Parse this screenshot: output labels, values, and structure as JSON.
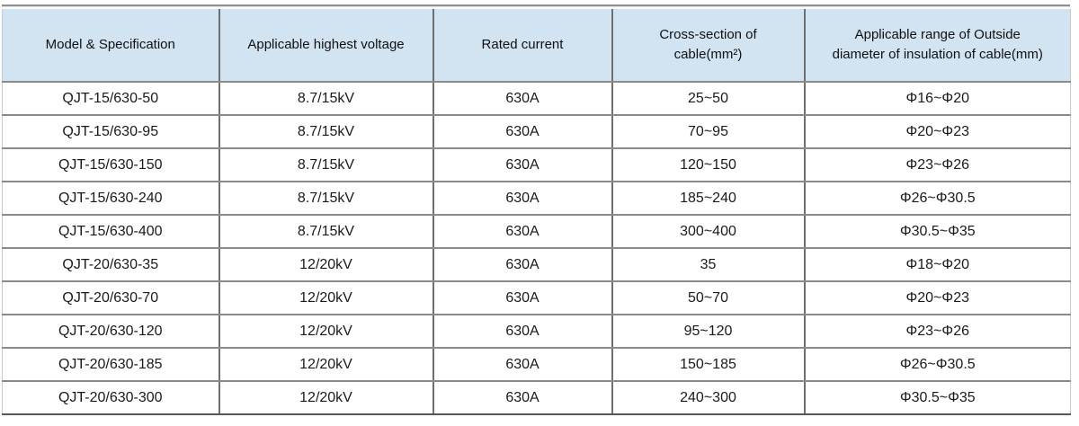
{
  "colors": {
    "header_bg": "#d2e3f2",
    "grid_line": "#8a8a8a",
    "column_line": "#6f6f6f",
    "text": "#1a1a1a"
  },
  "table": {
    "headers": [
      [
        "Model & Specification",
        ""
      ],
      [
        "Applicable highest voltage",
        ""
      ],
      [
        "Rated current",
        ""
      ],
      [
        "Cross-section of",
        "cable(mm²)"
      ],
      [
        "Applicable range of Outside",
        "diameter of insulation of cable(mm)"
      ]
    ],
    "rows": [
      [
        "QJT-15/630-50",
        "8.7/15kV",
        "630A",
        "25~50",
        "Φ16~Φ20"
      ],
      [
        "QJT-15/630-95",
        "8.7/15kV",
        "630A",
        "70~95",
        "Φ20~Φ23"
      ],
      [
        "QJT-15/630-150",
        "8.7/15kV",
        "630A",
        "120~150",
        "Φ23~Φ26"
      ],
      [
        "QJT-15/630-240",
        "8.7/15kV",
        "630A",
        "185~240",
        "Φ26~Φ30.5"
      ],
      [
        "QJT-15/630-400",
        "8.7/15kV",
        "630A",
        "300~400",
        "Φ30.5~Φ35"
      ],
      [
        "QJT-20/630-35",
        "12/20kV",
        "630A",
        "35",
        "Φ18~Φ20"
      ],
      [
        "QJT-20/630-70",
        "12/20kV",
        "630A",
        "50~70",
        "Φ20~Φ23"
      ],
      [
        "QJT-20/630-120",
        "12/20kV",
        "630A",
        "95~120",
        "Φ23~Φ26"
      ],
      [
        "QJT-20/630-185",
        "12/20kV",
        "630A",
        "150~185",
        "Φ26~Φ30.5"
      ],
      [
        "QJT-20/630-300",
        "12/20kV",
        "630A",
        "240~300",
        "Φ30.5~Φ35"
      ]
    ]
  }
}
